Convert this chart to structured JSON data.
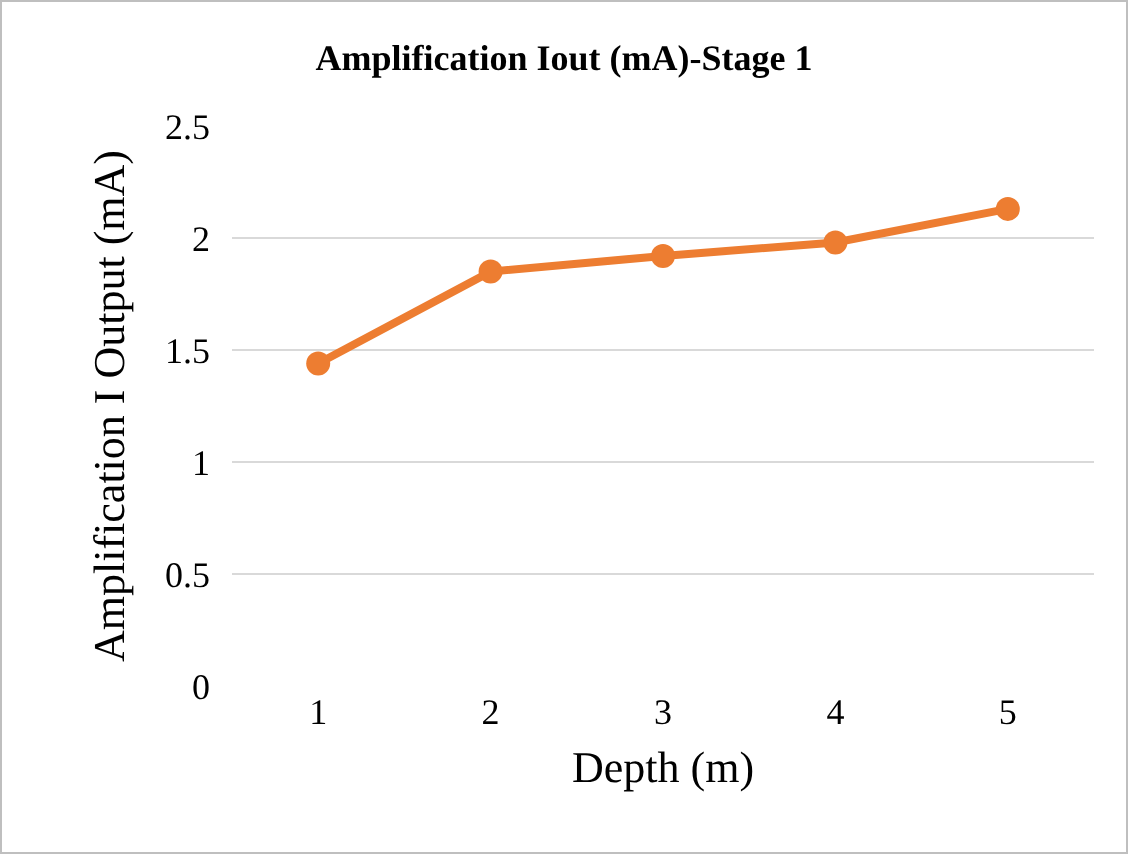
{
  "chart_data": {
    "type": "line",
    "title": "Amplification Iout (mA)-Stage 1",
    "xlabel": "Depth (m)",
    "ylabel": "Amplification I Output (mA)",
    "categories": [
      "1",
      "2",
      "3",
      "4",
      "5"
    ],
    "series": [
      {
        "color": "#ed7d31",
        "values": [
          1.44,
          1.85,
          1.92,
          1.98,
          2.13
        ]
      }
    ],
    "ylim": [
      0,
      2.5
    ],
    "yticks": [
      {
        "value": 0,
        "label": "0"
      },
      {
        "value": 0.5,
        "label": "0.5"
      },
      {
        "value": 1,
        "label": "1"
      },
      {
        "value": 1.5,
        "label": "1.5"
      },
      {
        "value": 2,
        "label": "2"
      },
      {
        "value": 2.5,
        "label": "2.5"
      }
    ],
    "grid": "y",
    "marker": "circle",
    "line_style": "solid",
    "legend": false
  }
}
